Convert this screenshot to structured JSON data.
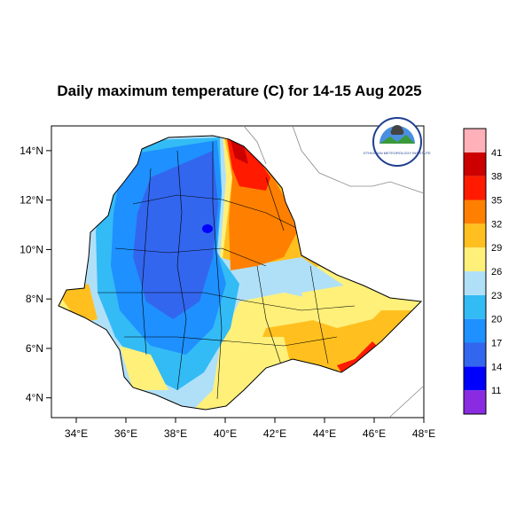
{
  "title": "Daily maximum temperature (C) for 14-15 Aug 2025",
  "map": {
    "lon_range": [
      33,
      48
    ],
    "lat_range": [
      3.2,
      15
    ],
    "lon_ticks": [
      "34°E",
      "36°E",
      "38°E",
      "40°E",
      "42°E",
      "44°E",
      "46°E",
      "48°E"
    ],
    "lon_values": [
      34,
      36,
      38,
      40,
      42,
      44,
      46,
      48
    ],
    "lat_ticks": [
      "4°N",
      "6°N",
      "8°N",
      "10°N",
      "12°N",
      "14°N"
    ],
    "lat_values": [
      4,
      6,
      8,
      10,
      12,
      14
    ],
    "region": "Ethiopia"
  },
  "colorbar": {
    "labels": [
      "11",
      "14",
      "17",
      "20",
      "23",
      "26",
      "29",
      "32",
      "35",
      "38",
      "41"
    ],
    "colors": [
      "#8a2be2",
      "#0000ff",
      "#3366ee",
      "#1e90ff",
      "#33bbf5",
      "#b0e0f8",
      "#fff07a",
      "#ffc01f",
      "#ff8000",
      "#ff1a00",
      "#cc0000",
      "#ffb0b8"
    ]
  },
  "logo": {
    "text": "ETHIOPIAN METEOROLOGY INSTITUTE",
    "colors": {
      "ring": "#1f3f8f",
      "sky": "#4a8fe0",
      "land": "#3a9a3a"
    }
  }
}
